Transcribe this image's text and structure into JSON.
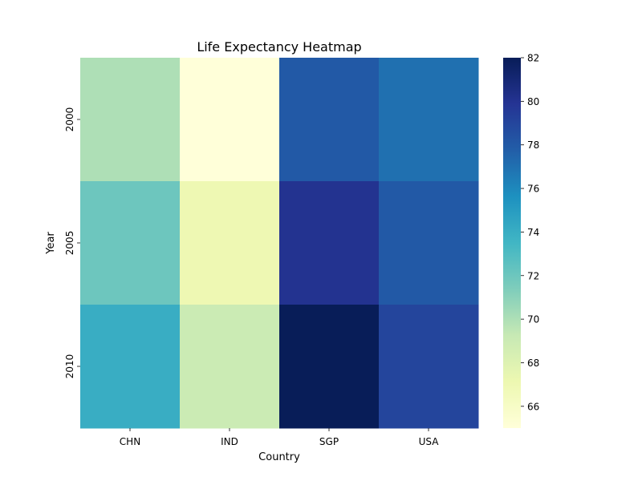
{
  "chart_data": {
    "type": "heatmap",
    "title": "Life Expectancy Heatmap",
    "xlabel": "Country",
    "ylabel": "Year",
    "x_categories": [
      "CHN",
      "IND",
      "SGP",
      "USA"
    ],
    "y_categories": [
      "2000",
      "2005",
      "2010"
    ],
    "values": [
      [
        70.0,
        65.0,
        78.0,
        77.0
      ],
      [
        72.0,
        67.0,
        80.0,
        78.0
      ],
      [
        74.0,
        69.0,
        82.0,
        79.0
      ]
    ],
    "colorbar": {
      "range": [
        65,
        82
      ],
      "ticks": [
        66,
        68,
        70,
        72,
        74,
        76,
        78,
        80,
        82
      ],
      "colormap": "YlGnBu",
      "stops": [
        "#ffffd9",
        "#edf8b1",
        "#c7e9b4",
        "#7fcdbb",
        "#41b6c4",
        "#1d91c0",
        "#225ea8",
        "#253494",
        "#081d58"
      ]
    },
    "grid": false
  }
}
